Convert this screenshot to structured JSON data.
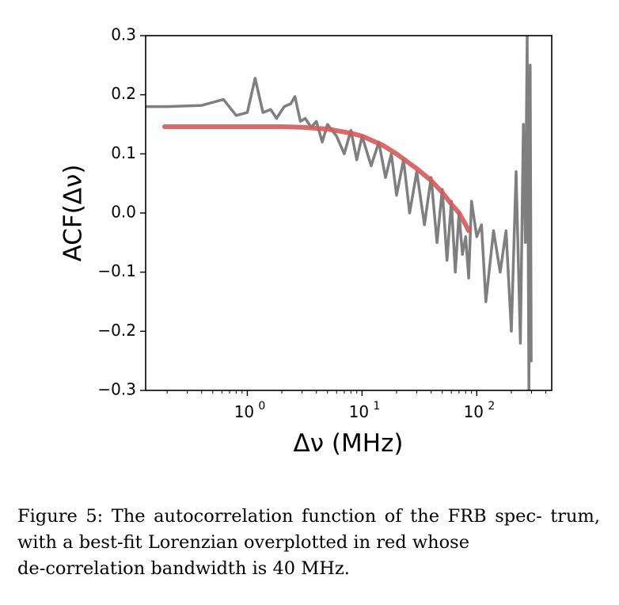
{
  "chart_data": {
    "type": "line",
    "xscale": "log",
    "xlim": [
      0.13,
      450
    ],
    "ylim": [
      -0.3,
      0.3
    ],
    "xlabel": "Δν (MHz)",
    "ylabel": "ACF(Δν)",
    "yticks": [
      -0.3,
      -0.2,
      -0.1,
      0.0,
      0.1,
      0.2,
      0.3
    ],
    "ytick_labels": [
      "−0.3",
      "−0.2",
      "−0.1",
      "0.0",
      "0.1",
      "0.2",
      "0.3"
    ],
    "xticks": [
      1,
      10,
      100
    ],
    "xtick_labels": [
      {
        "base": "10",
        "exp": "0"
      },
      {
        "base": "10",
        "exp": "1"
      },
      {
        "base": "10",
        "exp": "2"
      }
    ],
    "grid": false,
    "series": [
      {
        "color": "#7f7f7f",
        "x": [
          0.13,
          0.2,
          0.4,
          0.62,
          0.8,
          1.0,
          1.17,
          1.37,
          1.6,
          1.8,
          2.1,
          2.4,
          2.6,
          2.9,
          3.2,
          3.6,
          4.0,
          4.5,
          5.0,
          6.0,
          7.0,
          8.0,
          9.0,
          10,
          12,
          14,
          16,
          18,
          20,
          23,
          26,
          30,
          35,
          40,
          45,
          50,
          55,
          60,
          65,
          70,
          75,
          80,
          85,
          90,
          100,
          110,
          120,
          140,
          160,
          180,
          200,
          220,
          240,
          255,
          265,
          275,
          285,
          292,
          298
        ],
        "y": [
          0.18,
          0.18,
          0.182,
          0.192,
          0.165,
          0.17,
          0.228,
          0.17,
          0.175,
          0.16,
          0.18,
          0.185,
          0.197,
          0.155,
          0.16,
          0.145,
          0.155,
          0.12,
          0.15,
          0.13,
          0.1,
          0.14,
          0.09,
          0.13,
          0.08,
          0.12,
          0.06,
          0.1,
          0.03,
          0.09,
          0.0,
          0.07,
          -0.02,
          0.06,
          -0.05,
          0.04,
          -0.08,
          0.02,
          -0.1,
          0.0,
          -0.07,
          -0.04,
          -0.11,
          0.02,
          -0.04,
          -0.02,
          -0.15,
          -0.03,
          -0.1,
          -0.03,
          -0.2,
          0.07,
          -0.22,
          0.15,
          -0.05,
          0.3,
          -0.3,
          0.25,
          -0.25
        ]
      },
      {
        "color": "#d45a5a",
        "x": [
          0.19,
          0.5,
          1,
          2,
          3,
          5,
          8,
          10,
          15,
          20,
          30,
          40,
          50,
          60,
          70,
          80,
          85
        ],
        "y": [
          0.146,
          0.146,
          0.146,
          0.146,
          0.145,
          0.142,
          0.135,
          0.13,
          0.115,
          0.1,
          0.075,
          0.055,
          0.035,
          0.015,
          0.0,
          -0.02,
          -0.03
        ]
      }
    ]
  },
  "caption": {
    "line1": "Figure 5: The autocorrelation function of the FRB spec-",
    "line2": "trum, with a best-fit Lorenzian overplotted in red whose",
    "line3": "de-correlation bandwidth is 40 MHz."
  }
}
